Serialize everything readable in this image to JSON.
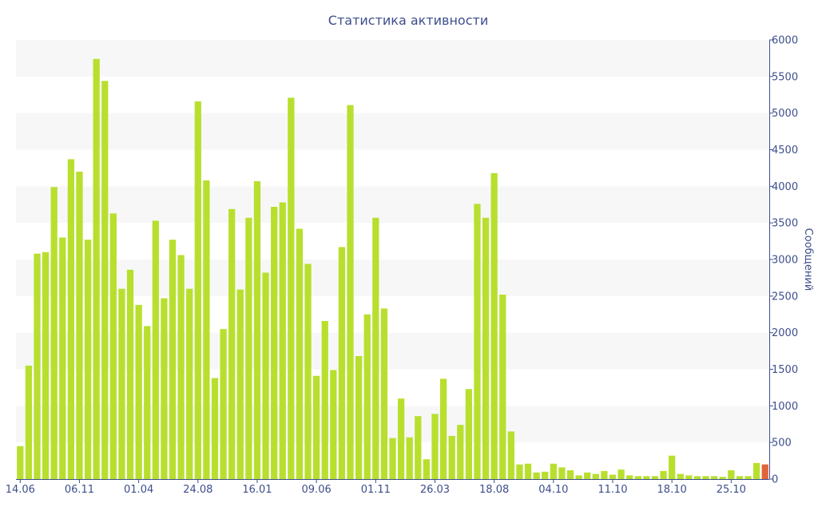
{
  "chart_data": {
    "type": "bar",
    "title": "Статистика активности",
    "ylabel": "Сообщений",
    "xlabel": "",
    "ylim": [
      0,
      6000
    ],
    "yticks": [
      0,
      500,
      1000,
      1500,
      2000,
      2500,
      3000,
      3500,
      4000,
      4500,
      5000,
      5500,
      6000
    ],
    "y_axis_side": "right",
    "grid": "alternating horizontal bands",
    "x_tick_labels": [
      {
        "index": 0,
        "label": "14.06"
      },
      {
        "index": 7,
        "label": "06.11"
      },
      {
        "index": 14,
        "label": "01.04"
      },
      {
        "index": 21,
        "label": "24.08"
      },
      {
        "index": 28,
        "label": "16.01"
      },
      {
        "index": 35,
        "label": "09.06"
      },
      {
        "index": 42,
        "label": "01.11"
      },
      {
        "index": 49,
        "label": "26.03"
      },
      {
        "index": 56,
        "label": "18.08"
      },
      {
        "index": 63,
        "label": "04.10"
      },
      {
        "index": 70,
        "label": "11.10"
      },
      {
        "index": 77,
        "label": "18.10"
      },
      {
        "index": 84,
        "label": "25.10"
      }
    ],
    "values": [
      450,
      1550,
      3080,
      3100,
      3990,
      3300,
      4370,
      4200,
      3270,
      5740,
      5440,
      3630,
      2600,
      2860,
      2380,
      2090,
      3530,
      2470,
      3270,
      3060,
      2600,
      5160,
      4080,
      1380,
      2050,
      3690,
      2590,
      3570,
      4070,
      2820,
      3720,
      3780,
      5210,
      3420,
      2940,
      1410,
      2160,
      1490,
      3170,
      5110,
      1680,
      2250,
      3570,
      2330,
      560,
      1100,
      570,
      860,
      270,
      890,
      1370,
      590,
      740,
      1230,
      3760,
      3570,
      4180,
      2520,
      650,
      200,
      210,
      90,
      100,
      210,
      160,
      120,
      50,
      90,
      70,
      110,
      60,
      130,
      50,
      40,
      40,
      40,
      110,
      320,
      70,
      50,
      40,
      40,
      40,
      30,
      120,
      40,
      40,
      220,
      200
    ],
    "highlight_index": 88,
    "colors": {
      "bar": "#b8df2e",
      "highlight": "#e0663a",
      "axis": "#3d4e8c",
      "band": "#f7f7f7"
    }
  }
}
